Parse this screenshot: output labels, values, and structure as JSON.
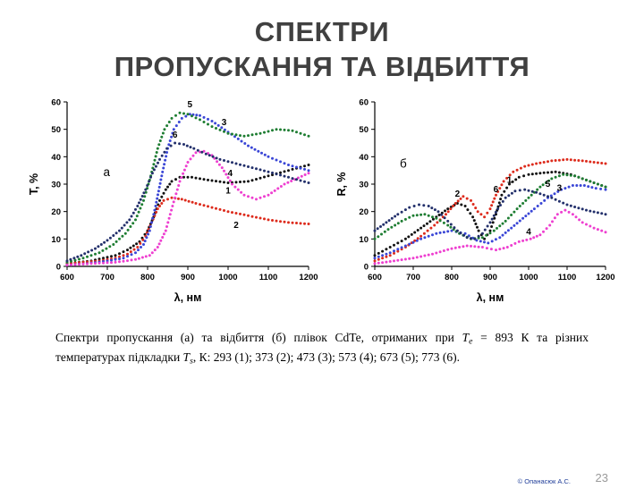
{
  "title_lines": [
    "СПЕКТРИ",
    "ПРОПУСКАННЯ ТА ВІДБИТТЯ"
  ],
  "caption": {
    "parts": [
      {
        "text": "Спектри пропускання (а) та відбиття (б) плівок CdTe, отриманих при ",
        "style": "normal"
      },
      {
        "text": "Т",
        "style": "italic"
      },
      {
        "text": "е",
        "style": "subscript"
      },
      {
        "text": " = 893 К та різних температурах підкладки ",
        "style": "normal"
      },
      {
        "text": "Т",
        "style": "italic"
      },
      {
        "text": "s",
        "style": "subscript"
      },
      {
        "text": ", К: 293 (1); 373 (2); 473 (3); 573 (4); 673 (5); 773 (6).",
        "style": "normal"
      }
    ]
  },
  "footer": {
    "copyright": "© Опанасюк А.С.",
    "page_number": "23"
  },
  "chart_data": [
    {
      "type": "scatter",
      "title": "",
      "xlabel": "λ, нм",
      "ylabel": "T, %",
      "panel": "а",
      "panel_pos": {
        "x": 690,
        "y": 33
      },
      "xlim": [
        600,
        1200
      ],
      "ylim": [
        0,
        60
      ],
      "xticks": [
        600,
        700,
        800,
        900,
        1000,
        1100,
        1200
      ],
      "yticks": [
        0,
        10,
        20,
        30,
        40,
        50,
        60
      ],
      "grid": false,
      "series": [
        {
          "name": "1",
          "color": "#111111",
          "x": [
            600,
            630,
            660,
            690,
            720,
            750,
            780,
            800,
            815,
            830,
            845,
            860,
            880,
            910,
            950,
            1000,
            1050,
            1100,
            1150,
            1200
          ],
          "y": [
            1,
            1.5,
            2,
            3,
            4,
            6,
            9,
            13,
            18,
            24,
            28,
            31,
            32.5,
            32.5,
            31.5,
            30.5,
            31,
            33,
            35,
            37
          ]
        },
        {
          "name": "2",
          "color": "#dd2b1c",
          "x": [
            600,
            640,
            680,
            720,
            750,
            775,
            795,
            810,
            825,
            840,
            860,
            885,
            920,
            960,
            1000,
            1050,
            1100,
            1150,
            1200
          ],
          "y": [
            1,
            1.5,
            2,
            3,
            4.5,
            7,
            11,
            16,
            21,
            24,
            25,
            24.5,
            23,
            21.5,
            20,
            18.5,
            17,
            16,
            15.5
          ]
        },
        {
          "name": "3",
          "color": "#3a46d6",
          "x": [
            600,
            650,
            700,
            740,
            770,
            790,
            805,
            820,
            835,
            850,
            865,
            885,
            905,
            930,
            960,
            1000,
            1050,
            1100,
            1150,
            1200
          ],
          "y": [
            0.5,
            1,
            2,
            3,
            5,
            8,
            13,
            22,
            33,
            43,
            50,
            54,
            55.5,
            55,
            53,
            49,
            44,
            40,
            37,
            35
          ]
        },
        {
          "name": "4",
          "color": "#ee3fd0",
          "x": [
            600,
            660,
            720,
            770,
            805,
            825,
            845,
            862,
            880,
            900,
            920,
            940,
            960,
            985,
            1010,
            1040,
            1070,
            1100,
            1140,
            1200
          ],
          "y": [
            0.5,
            1,
            1.5,
            2.5,
            4,
            7,
            13,
            22,
            31,
            38,
            41.5,
            42,
            40.5,
            36,
            30,
            26,
            24.5,
            26,
            30,
            34
          ]
        },
        {
          "name": "5",
          "color": "#1e7d32",
          "x": [
            600,
            640,
            680,
            715,
            745,
            770,
            790,
            808,
            825,
            842,
            860,
            880,
            900,
            930,
            960,
            1000,
            1040,
            1080,
            1120,
            1160,
            1200
          ],
          "y": [
            1.5,
            3,
            5,
            8,
            12,
            17,
            24,
            33,
            43,
            50,
            54,
            56,
            55.5,
            53.5,
            51,
            48.5,
            47.5,
            48.5,
            50,
            49.5,
            47.5
          ]
        },
        {
          "name": "6",
          "color": "#23306b",
          "x": [
            600,
            635,
            670,
            700,
            730,
            755,
            775,
            795,
            812,
            830,
            848,
            868,
            890,
            915,
            945,
            980,
            1020,
            1060,
            1100,
            1150,
            1200
          ],
          "y": [
            2,
            4,
            6.5,
            9.5,
            13,
            17,
            22,
            28,
            34,
            39,
            43,
            45,
            44.5,
            43,
            41,
            39,
            37.5,
            36,
            34.5,
            32.5,
            30.5
          ]
        }
      ],
      "curve_labels": [
        {
          "text": "5",
          "x": 905,
          "y": 58
        },
        {
          "text": "3",
          "x": 990,
          "y": 51.5
        },
        {
          "text": "6",
          "x": 868,
          "y": 47
        },
        {
          "text": "4",
          "x": 1005,
          "y": 33
        },
        {
          "text": "1",
          "x": 1000,
          "y": 26.5
        },
        {
          "text": "2",
          "x": 1020,
          "y": 14
        }
      ]
    },
    {
      "type": "scatter",
      "title": "",
      "xlabel": "λ, нм",
      "ylabel": "R, %",
      "panel": "б",
      "panel_pos": {
        "x": 665,
        "y": 36
      },
      "xlim": [
        600,
        1200
      ],
      "ylim": [
        0,
        60
      ],
      "xticks": [
        600,
        700,
        800,
        900,
        1000,
        1100,
        1200
      ],
      "yticks": [
        0,
        10,
        20,
        30,
        40,
        50,
        60
      ],
      "grid": false,
      "series": [
        {
          "name": "1",
          "color": "#111111",
          "x": [
            600,
            640,
            680,
            720,
            760,
            790,
            815,
            835,
            855,
            870,
            885,
            900,
            915,
            930,
            950,
            975,
            1000,
            1030,
            1070,
            1110,
            1150,
            1200
          ],
          "y": [
            4,
            7,
            10,
            14,
            18,
            21,
            23,
            22,
            18,
            13,
            10,
            13,
            19,
            26,
            30,
            32.5,
            33.5,
            34,
            34.5,
            33.5,
            31.5,
            29
          ]
        },
        {
          "name": "2",
          "color": "#dd2b1c",
          "x": [
            600,
            640,
            680,
            720,
            755,
            785,
            810,
            830,
            850,
            868,
            885,
            900,
            915,
            935,
            960,
            990,
            1020,
            1060,
            1100,
            1140,
            1170,
            1200
          ],
          "y": [
            2,
            4,
            7,
            11,
            15,
            19,
            23,
            25.5,
            24,
            20,
            18,
            21,
            26,
            31,
            34.5,
            36.5,
            37.5,
            38.5,
            39,
            38.5,
            38,
            37.5
          ]
        },
        {
          "name": "3",
          "color": "#3a46d6",
          "x": [
            600,
            640,
            680,
            720,
            760,
            800,
            835,
            865,
            895,
            925,
            955,
            985,
            1015,
            1050,
            1085,
            1115,
            1145,
            1175,
            1200
          ],
          "y": [
            3,
            5,
            7.5,
            10,
            12,
            13,
            12,
            9.5,
            8.5,
            10.5,
            14,
            17.5,
            21,
            25,
            28,
            29.5,
            29.5,
            28.5,
            28
          ]
        },
        {
          "name": "4",
          "color": "#ee3fd0",
          "x": [
            600,
            650,
            700,
            750,
            800,
            840,
            880,
            915,
            945,
            975,
            1005,
            1030,
            1055,
            1075,
            1095,
            1115,
            1140,
            1170,
            1200
          ],
          "y": [
            1,
            2,
            3,
            4.5,
            6.5,
            7.5,
            7,
            6,
            7,
            9,
            10,
            11.5,
            15,
            19,
            20.5,
            19,
            16,
            14,
            12.5
          ]
        },
        {
          "name": "5",
          "color": "#1e7d32",
          "x": [
            600,
            635,
            670,
            700,
            730,
            760,
            790,
            820,
            850,
            880,
            910,
            940,
            970,
            1000,
            1030,
            1060,
            1090,
            1120,
            1150,
            1180,
            1200
          ],
          "y": [
            10,
            13.5,
            16.5,
            18.5,
            19,
            17.5,
            15,
            12,
            10,
            10.5,
            13,
            16.5,
            21,
            25,
            29,
            32,
            33.5,
            33,
            31.5,
            30,
            29
          ]
        },
        {
          "name": "6",
          "color": "#23306b",
          "x": [
            600,
            630,
            660,
            690,
            715,
            740,
            765,
            790,
            815,
            840,
            860,
            880,
            900,
            920,
            940,
            965,
            990,
            1020,
            1060,
            1100,
            1150,
            1200
          ],
          "y": [
            13,
            16,
            19,
            21.5,
            22.5,
            22,
            20,
            16.5,
            13,
            10.5,
            10,
            12,
            16,
            21,
            25,
            27.5,
            28,
            27,
            25,
            22.5,
            20.5,
            19
          ]
        }
      ],
      "curve_labels": [
        {
          "text": "2",
          "x": 815,
          "y": 25.5
        },
        {
          "text": "1",
          "x": 950,
          "y": 30.5
        },
        {
          "text": "6",
          "x": 915,
          "y": 27
        },
        {
          "text": "5",
          "x": 1050,
          "y": 29
        },
        {
          "text": "3",
          "x": 1080,
          "y": 27.5
        },
        {
          "text": "4",
          "x": 1000,
          "y": 11.5
        }
      ]
    }
  ]
}
